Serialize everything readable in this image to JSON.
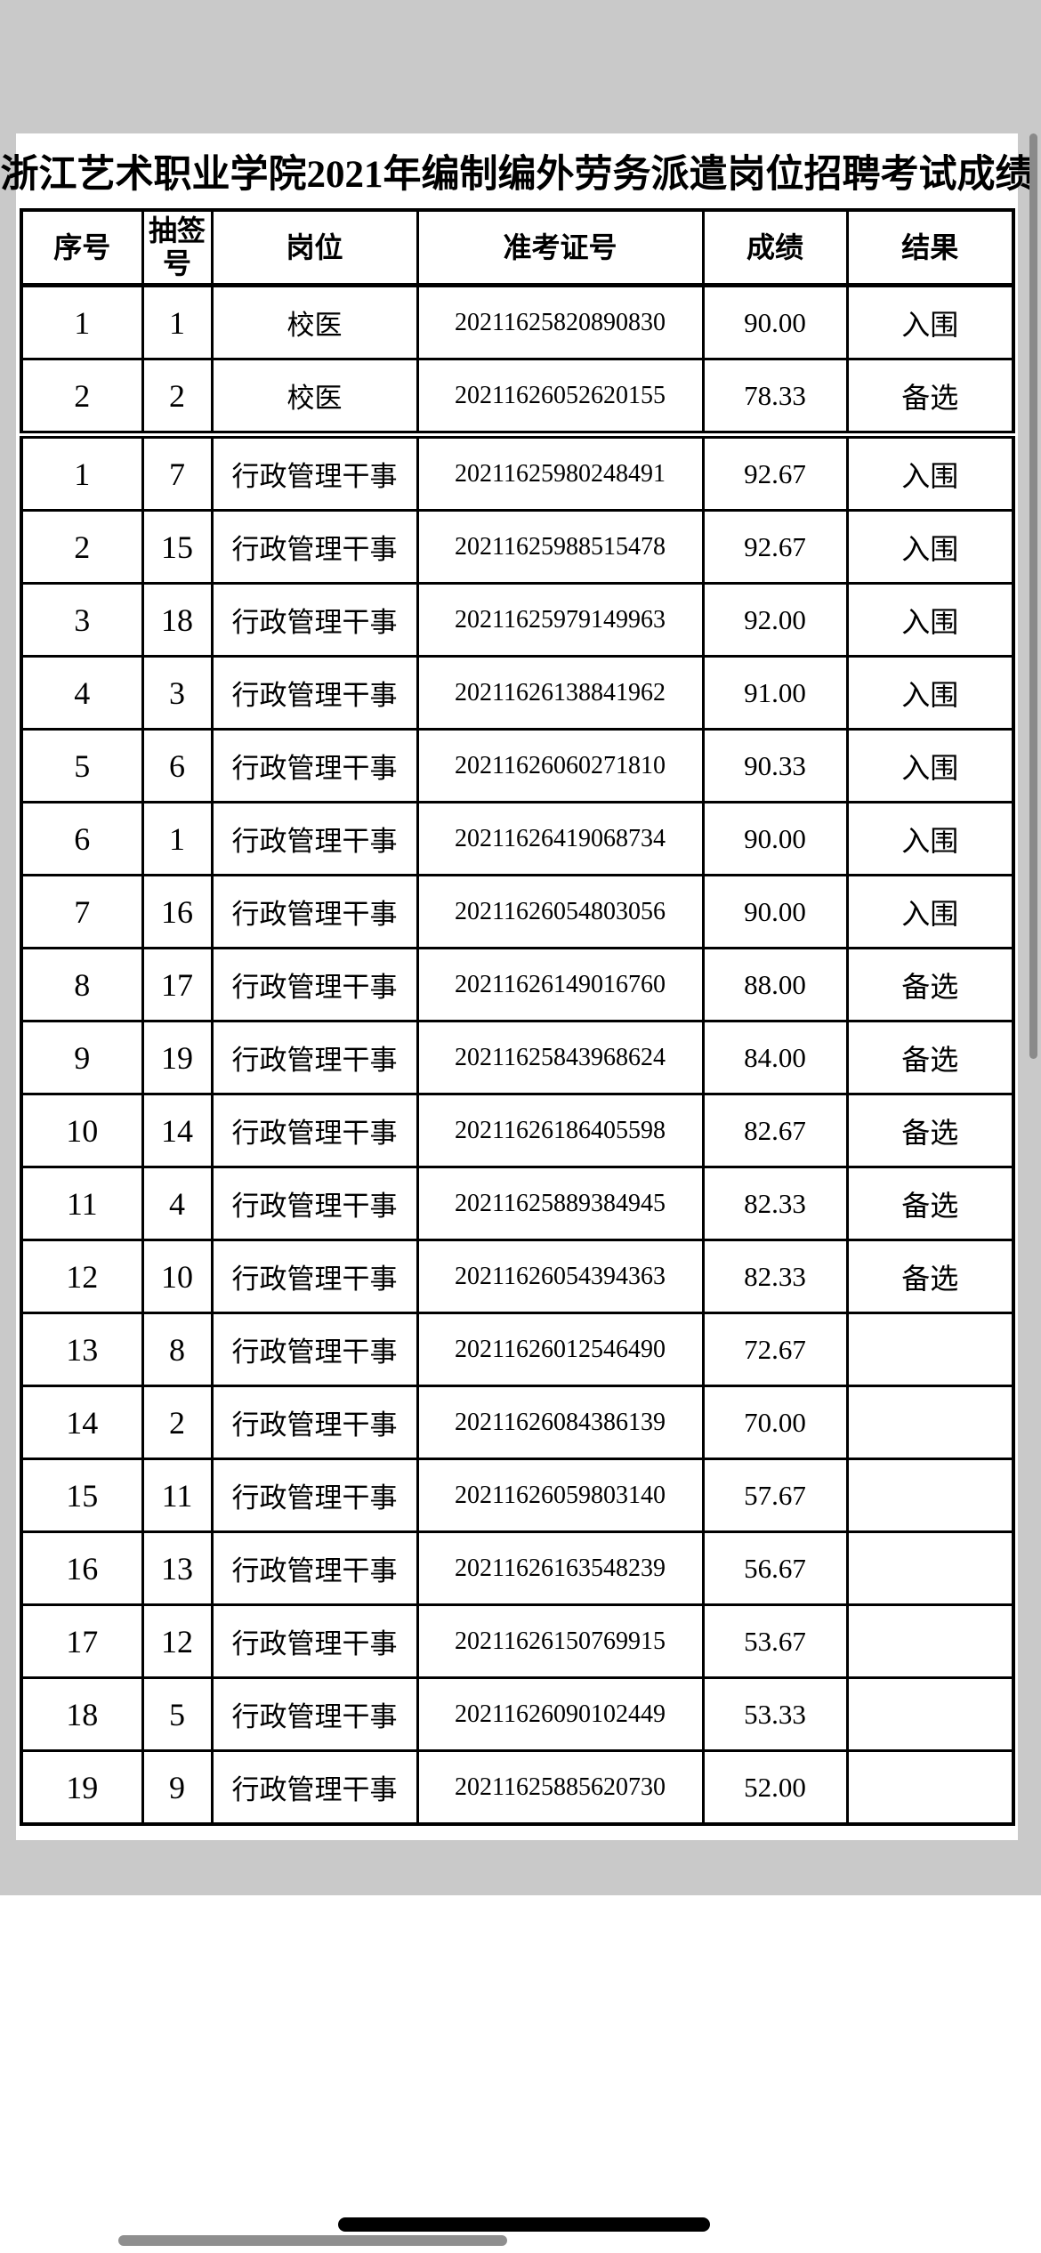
{
  "title": "浙江艺术职业学院2021年编制编外劳务派遣岗位招聘考试成绩",
  "table": {
    "headers": [
      "序号",
      "抽签号",
      "岗位",
      "准考证号",
      "成绩",
      "结果"
    ],
    "groups": [
      {
        "position": "校医",
        "rows": [
          [
            "1",
            "1",
            "校医",
            "20211625820890830",
            "90.00",
            "入围"
          ],
          [
            "2",
            "2",
            "校医",
            "20211626052620155",
            "78.33",
            "备选"
          ]
        ]
      },
      {
        "position": "行政管理干事",
        "rows": [
          [
            "1",
            "7",
            "行政管理干事",
            "20211625980248491",
            "92.67",
            "入围"
          ],
          [
            "2",
            "15",
            "行政管理干事",
            "20211625988515478",
            "92.67",
            "入围"
          ],
          [
            "3",
            "18",
            "行政管理干事",
            "20211625979149963",
            "92.00",
            "入围"
          ],
          [
            "4",
            "3",
            "行政管理干事",
            "20211626138841962",
            "91.00",
            "入围"
          ],
          [
            "5",
            "6",
            "行政管理干事",
            "20211626060271810",
            "90.33",
            "入围"
          ],
          [
            "6",
            "1",
            "行政管理干事",
            "20211626419068734",
            "90.00",
            "入围"
          ],
          [
            "7",
            "16",
            "行政管理干事",
            "20211626054803056",
            "90.00",
            "入围"
          ],
          [
            "8",
            "17",
            "行政管理干事",
            "20211626149016760",
            "88.00",
            "备选"
          ],
          [
            "9",
            "19",
            "行政管理干事",
            "20211625843968624",
            "84.00",
            "备选"
          ],
          [
            "10",
            "14",
            "行政管理干事",
            "20211626186405598",
            "82.67",
            "备选"
          ],
          [
            "11",
            "4",
            "行政管理干事",
            "20211625889384945",
            "82.33",
            "备选"
          ],
          [
            "12",
            "10",
            "行政管理干事",
            "20211626054394363",
            "82.33",
            "备选"
          ],
          [
            "13",
            "8",
            "行政管理干事",
            "20211626012546490",
            "72.67",
            ""
          ],
          [
            "14",
            "2",
            "行政管理干事",
            "20211626084386139",
            "70.00",
            ""
          ],
          [
            "15",
            "11",
            "行政管理干事",
            "20211626059803140",
            "57.67",
            ""
          ],
          [
            "16",
            "13",
            "行政管理干事",
            "20211626163548239",
            "56.67",
            ""
          ],
          [
            "17",
            "12",
            "行政管理干事",
            "20211626150769915",
            "53.67",
            ""
          ],
          [
            "18",
            "5",
            "行政管理干事",
            "20211626090102449",
            "53.33",
            ""
          ],
          [
            "19",
            "9",
            "行政管理干事",
            "20211625885620730",
            "52.00",
            ""
          ]
        ]
      }
    ]
  },
  "colors": {
    "page_gray": "#c9c9c9",
    "card_white": "#ffffff",
    "table_border": "#000000",
    "scrollbar_gray": "#8a8a8a",
    "home_indicator_black": "#000000"
  }
}
